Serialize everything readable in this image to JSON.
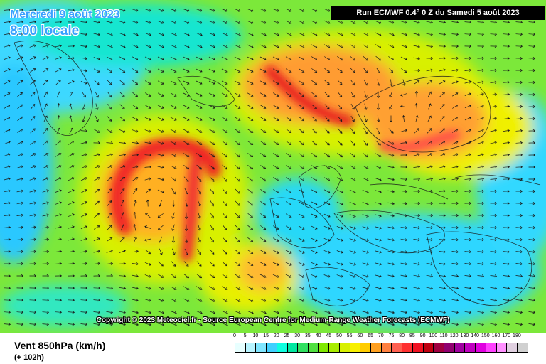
{
  "header": {
    "date": "Mercredi 9 août 2023",
    "time": "8:00 locale",
    "run": "Run ECMWF 0.4° 0 Z du Samedi 5 août 2023"
  },
  "copyright": "Copyright © 2023 Meteociel.fr - Source European Centre for Medium-Range Weather Forecasts (ECMWF)",
  "footer": {
    "variable": "Vent 850hPa (km/h)",
    "lead_time": "(+ 102h)"
  },
  "legend": {
    "ticks": [
      "0",
      "5",
      "10",
      "15",
      "20",
      "25",
      "30",
      "35",
      "40",
      "45",
      "50",
      "55",
      "60",
      "65",
      "70",
      "75",
      "80",
      "85",
      "90",
      "100",
      "110",
      "120",
      "130",
      "140",
      "150",
      "160",
      "170",
      "180"
    ],
    "colors": [
      "#e8ffff",
      "#b8f4ff",
      "#80e6ff",
      "#40d0ff",
      "#10ffe0",
      "#00e8a0",
      "#30e060",
      "#50e040",
      "#80e800",
      "#a8ec00",
      "#d8f000",
      "#f8f000",
      "#ffcc00",
      "#ffa020",
      "#ff8040",
      "#ff6050",
      "#ff3030",
      "#f01020",
      "#c00010",
      "#a00040",
      "#900070",
      "#a000a0",
      "#c000c0",
      "#e000e0",
      "#ff40ff",
      "#ff90ff",
      "#e0d0e0",
      "#d0d0d0"
    ]
  }
}
